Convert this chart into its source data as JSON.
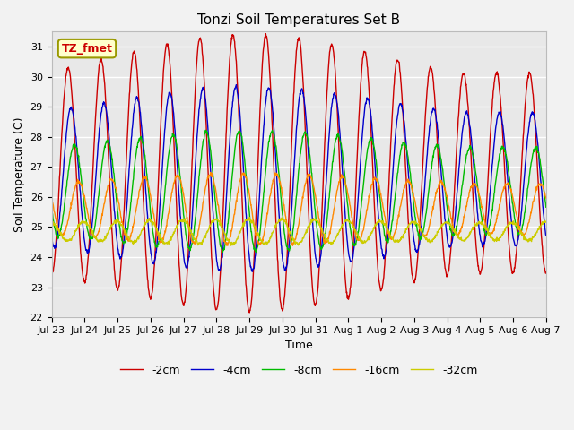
{
  "title": "Tonzi Soil Temperatures Set B",
  "xlabel": "Time",
  "ylabel": "Soil Temperature (C)",
  "annotation": "TZ_fmet",
  "ylim": [
    22.0,
    31.5
  ],
  "yticks": [
    22.0,
    23.0,
    24.0,
    25.0,
    26.0,
    27.0,
    28.0,
    29.0,
    30.0,
    31.0
  ],
  "fig_facecolor": "#f2f2f2",
  "ax_facecolor": "#e8e8e8",
  "series": [
    {
      "label": "-2cm",
      "color": "#cc0000",
      "amplitude": 3.9,
      "phase": 0.0,
      "mean": 26.8
    },
    {
      "label": "-4cm",
      "color": "#0000cc",
      "amplitude": 2.6,
      "phase": 0.55,
      "mean": 26.6
    },
    {
      "label": "-8cm",
      "color": "#00bb00",
      "amplitude": 1.7,
      "phase": 1.2,
      "mean": 26.2
    },
    {
      "label": "-16cm",
      "color": "#ff8800",
      "amplitude": 1.0,
      "phase": 2.0,
      "mean": 25.6
    },
    {
      "label": "-32cm",
      "color": "#cccc00",
      "amplitude": 0.35,
      "phase": 3.0,
      "mean": 24.85
    }
  ],
  "n_points": 1500,
  "days": 15,
  "tick_days": [
    "Jul 23",
    "Jul 24",
    "Jul 25",
    "Jul 26",
    "Jul 27",
    "Jul 28",
    "Jul 29",
    "Jul 30",
    "Jul 31",
    "Aug 1",
    "Aug 2",
    "Aug 3",
    "Aug 4",
    "Aug 5",
    "Aug 6",
    "Aug 7"
  ],
  "linewidth": 1.0,
  "figsize": [
    6.4,
    4.8
  ],
  "dpi": 100,
  "title_fontsize": 11,
  "label_fontsize": 9,
  "tick_fontsize": 8,
  "legend_fontsize": 9,
  "annotation_fontsize": 9
}
